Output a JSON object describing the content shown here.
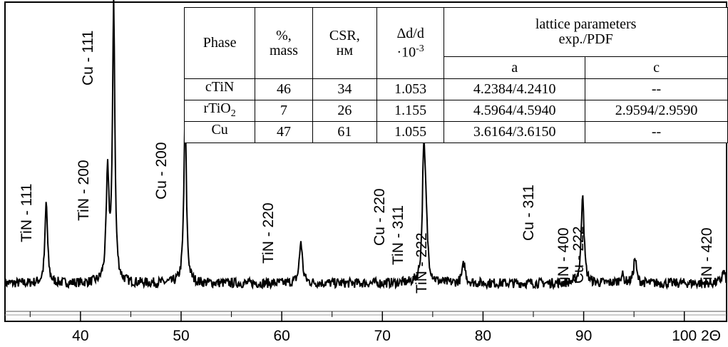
{
  "chart_data": {
    "type": "line",
    "xlabel": "2Θ",
    "ylabel": "",
    "xlim": [
      32.5,
      104.2
    ],
    "xticks": [
      40,
      50,
      60,
      70,
      80,
      90,
      100
    ],
    "tick_labels": [
      "40",
      "50",
      "60",
      "70",
      "80",
      "90",
      "100"
    ],
    "grid": false,
    "background_level": 0.07,
    "peaks": [
      {
        "x": 36.6,
        "height": 0.29,
        "width": 0.22,
        "label": "TiN - 111"
      },
      {
        "x": 42.7,
        "height": 0.38,
        "width": 0.25,
        "label": "TiN - 200"
      },
      {
        "x": 43.3,
        "height": 1.0,
        "width": 0.2,
        "label": "Cu - 111"
      },
      {
        "x": 50.4,
        "height": 0.61,
        "width": 0.22,
        "label": "Cu - 200"
      },
      {
        "x": 61.9,
        "height": 0.15,
        "width": 0.26,
        "label": "TiN - 220"
      },
      {
        "x": 74.1,
        "height": 0.4,
        "width": 0.22,
        "label": "Cu - 220"
      },
      {
        "x": 74.3,
        "height": 0.22,
        "width": 0.3,
        "label": "TiN - 311"
      },
      {
        "x": 78.1,
        "height": 0.07,
        "width": 0.28,
        "label": "TiN - 222"
      },
      {
        "x": 89.9,
        "height": 0.33,
        "width": 0.24,
        "label": "Cu - 311"
      },
      {
        "x": 93.8,
        "height": 0.03,
        "width": 0.3,
        "label": "TiN - 400"
      },
      {
        "x": 95.1,
        "height": 0.09,
        "width": 0.24,
        "label": "Cu - 222"
      },
      {
        "x": 103.9,
        "height": 0.04,
        "width": 0.3,
        "label": "TiN - 420"
      }
    ]
  },
  "table": {
    "headers": {
      "phase": "Phase",
      "mass_line1": "%,",
      "mass_line2": "mass",
      "csr_line1": "CSR,",
      "csr_line2": "нм",
      "dd_line1": "Δd/d",
      "dd_line2_base": "·10",
      "dd_line2_exp": "-3",
      "lattice_line1": "lattice parameters",
      "lattice_line2": "exp./PDF",
      "a": "a",
      "c": "c"
    },
    "rows": [
      {
        "phase": "cTiN",
        "phase_sub": "",
        "mass": "46",
        "csr": "34",
        "dd": "1.053",
        "a": "4.2384/4.2410",
        "c": "--"
      },
      {
        "phase": "rTiO",
        "phase_sub": "2",
        "mass": "7",
        "csr": "26",
        "dd": "1.155",
        "a": "4.5964/4.5940",
        "c": "2.9594/2.9590"
      },
      {
        "phase": "Cu",
        "phase_sub": "",
        "mass": "47",
        "csr": "61",
        "dd": "1.055",
        "a": "3.6164/3.6150",
        "c": "--"
      }
    ]
  }
}
